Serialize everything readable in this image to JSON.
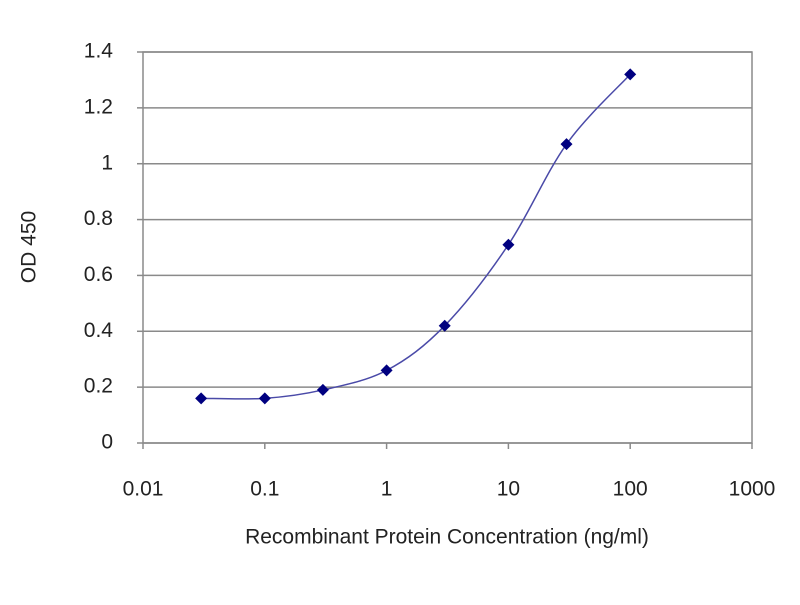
{
  "chart_data": {
    "type": "line",
    "x_label": "Recombinant Protein Concentration (ng/ml)",
    "y_label": "OD 450",
    "x": [
      0.03,
      0.1,
      0.3,
      1,
      3,
      10,
      30,
      100
    ],
    "series": [
      {
        "color": "#000080",
        "values": [
          0.16,
          0.16,
          0.19,
          0.26,
          0.42,
          0.71,
          1.07,
          1.32
        ]
      }
    ],
    "line_color": "#4a4aa8",
    "x_log": true,
    "xlim": [
      0.01,
      1000
    ],
    "xticks": [
      0.01,
      0.1,
      1,
      10,
      100,
      1000
    ],
    "ylim": [
      0,
      1.4
    ],
    "yticks": [
      0,
      0.2,
      0.4,
      0.6,
      0.8,
      1,
      1.2,
      1.4
    ],
    "grid": true
  }
}
